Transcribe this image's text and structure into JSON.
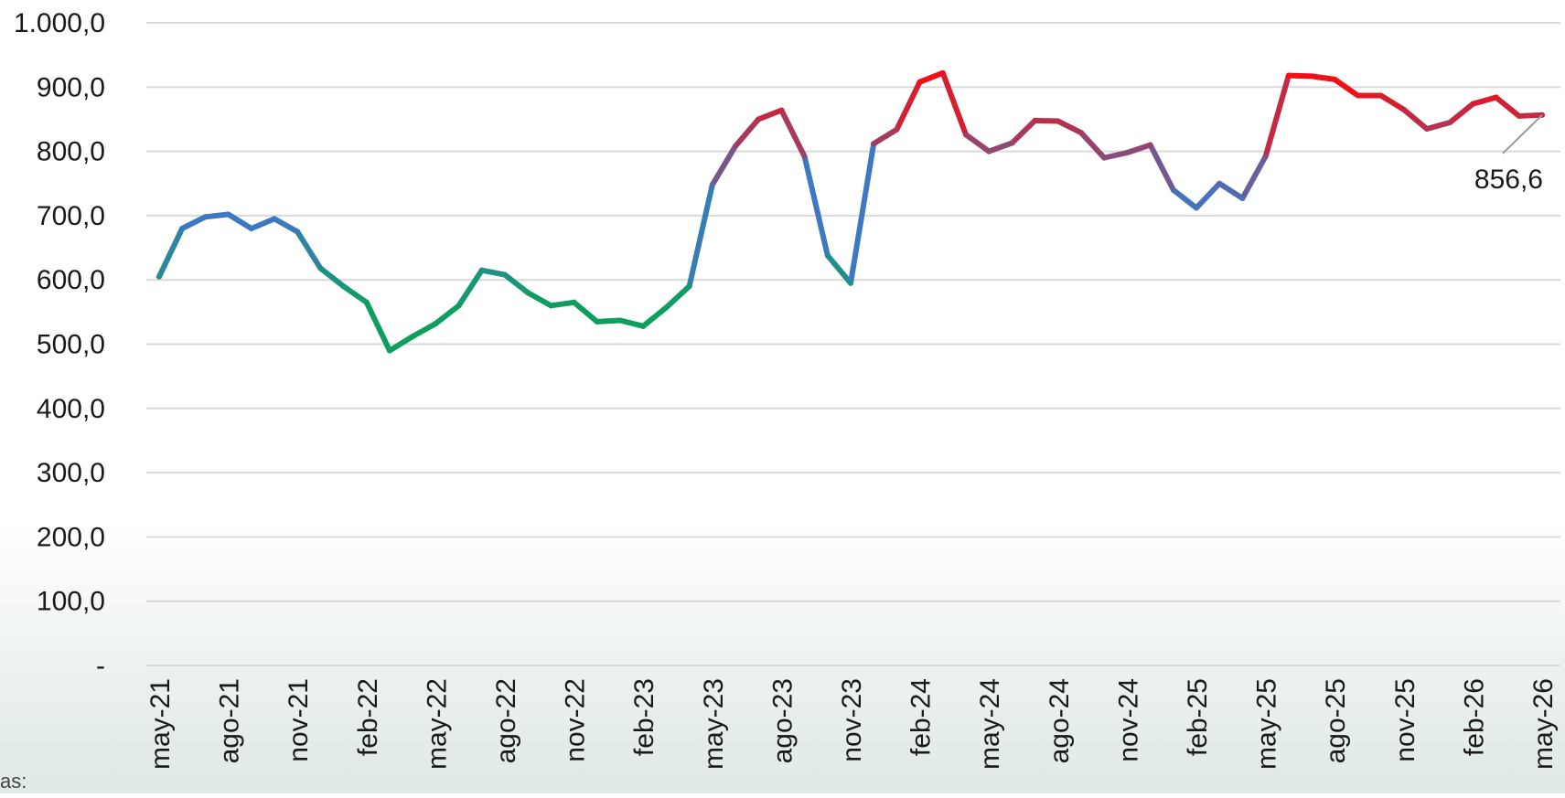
{
  "footer_note": "as:",
  "chart_data": {
    "type": "line",
    "title": "",
    "xlabel": "",
    "ylabel": "",
    "ylim": [
      0,
      1000
    ],
    "grid": true,
    "legend": "none",
    "y_ticks": [
      {
        "value": 0,
        "label": "-"
      },
      {
        "value": 100,
        "label": "100,0"
      },
      {
        "value": 200,
        "label": "200,0"
      },
      {
        "value": 300,
        "label": "300,0"
      },
      {
        "value": 400,
        "label": "400,0"
      },
      {
        "value": 500,
        "label": "500,0"
      },
      {
        "value": 600,
        "label": "600,0"
      },
      {
        "value": 700,
        "label": "700,0"
      },
      {
        "value": 800,
        "label": "800,0"
      },
      {
        "value": 900,
        "label": "900,0"
      },
      {
        "value": 1000,
        "label": "1.000,0"
      }
    ],
    "x_tick_labels": [
      "may-21",
      "ago-21",
      "nov-21",
      "feb-22",
      "may-22",
      "ago-22",
      "nov-22",
      "feb-23",
      "may-23",
      "ago-23",
      "nov-23",
      "feb-24",
      "may-24",
      "ago-24",
      "nov-24",
      "feb-25",
      "may-25",
      "ago-25",
      "nov-25",
      "feb-26",
      "may-26"
    ],
    "x_tick_every": 3,
    "color_scale": {
      "low": "#0e9f5e",
      "mid": "#3e78c2",
      "high": "#ef1018"
    },
    "series": [
      {
        "values": [
          605,
          680,
          698,
          702,
          680,
          695,
          675,
          618,
          590,
          565,
          490,
          512,
          532,
          560,
          615,
          608,
          580,
          560,
          565,
          535,
          537,
          528,
          557,
          590,
          748,
          808,
          850,
          864,
          792,
          638,
          595,
          812,
          834,
          908,
          922,
          826,
          800,
          813,
          848,
          847,
          829,
          790,
          798,
          810,
          740,
          712,
          750,
          727,
          792,
          918,
          917,
          912,
          887,
          887,
          865,
          835,
          845,
          874,
          884,
          855,
          856.6
        ]
      }
    ],
    "annotations": [
      {
        "point_index": 60,
        "text": "856,6"
      }
    ]
  }
}
